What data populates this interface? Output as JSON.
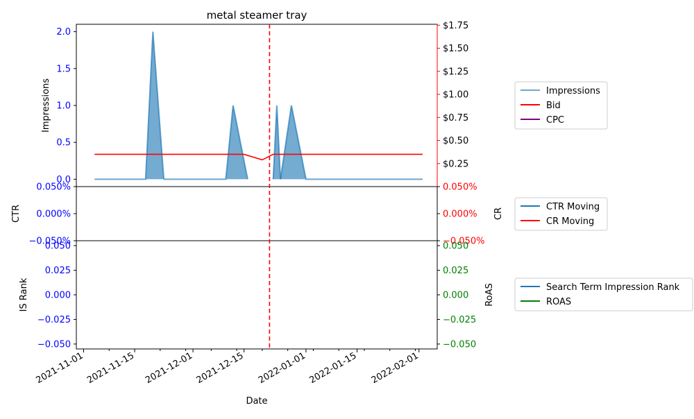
{
  "title": "metal steamer tray",
  "colors": {
    "impressions": "#1f77b4",
    "bid": "#ff0000",
    "cpc": "#800080",
    "ctr": "#1f77b4",
    "cr": "#ff0000",
    "is_rank": "#1f77b4",
    "roas": "#008000",
    "left_tick": "#0000ff",
    "event_line": "#ff0000"
  },
  "chart_data": [
    {
      "type": "area",
      "panel": "top",
      "title": "metal steamer tray",
      "ylabel_left": "Impressions",
      "ylim_left": [
        -0.1,
        2.1
      ],
      "yticks_left": [
        0.0,
        0.5,
        1.0,
        1.5,
        2.0
      ],
      "ytick_labels_left": [
        "0.0",
        "0.5",
        "1.0",
        "1.5",
        "2.0"
      ],
      "ylim_right": [
        0.0,
        1.76
      ],
      "yticks_right": [
        0.25,
        0.5,
        0.75,
        1.0,
        1.25,
        1.5,
        1.75
      ],
      "ytick_labels_right": [
        "$0.25",
        "$0.50",
        "$0.75",
        "$1.00",
        "$1.25",
        "$1.50",
        "$1.75"
      ],
      "legend": [
        "Impressions",
        "Bid",
        "CPC"
      ],
      "legend_position": "outside-right",
      "series": [
        {
          "name": "Impressions",
          "axis": "left",
          "kind": "area",
          "segments": [
            {
              "x": [
                "2021-11-04",
                "2021-11-18",
                "2021-11-20",
                "2021-11-23"
              ],
              "y": [
                0,
                0,
                2,
                0
              ]
            },
            {
              "x": [
                "2021-11-23",
                "2021-12-10",
                "2021-12-12",
                "2021-12-16"
              ],
              "y": [
                0,
                0,
                1,
                0
              ]
            },
            {
              "x": [
                "2021-12-23",
                "2021-12-24",
                "2021-12-25"
              ],
              "y": [
                0,
                1,
                0
              ]
            },
            {
              "x": [
                "2021-12-25",
                "2021-12-28",
                "2022-01-01",
                "2022-02-02"
              ],
              "y": [
                0,
                1,
                0,
                0
              ]
            }
          ]
        },
        {
          "name": "Bid",
          "axis": "right",
          "kind": "line",
          "x": [
            "2021-11-04",
            "2021-12-15",
            "2021-12-20",
            "2021-12-23",
            "2022-02-02"
          ],
          "y": [
            0.35,
            0.35,
            0.29,
            0.35,
            0.35
          ]
        },
        {
          "name": "CPC",
          "axis": "right",
          "kind": "line",
          "x": [],
          "y": []
        }
      ]
    },
    {
      "type": "line",
      "panel": "middle",
      "ylabel_left": "CTR",
      "ylabel_right": "CR",
      "ylim": [
        -0.0005,
        0.0005
      ],
      "ytick_labels": [
        "−0.050%",
        "0.000%",
        "0.050%"
      ],
      "legend": [
        "CTR Moving",
        "CR Moving"
      ],
      "legend_position": "outside-right",
      "series": [
        {
          "name": "CTR Moving",
          "x": [],
          "y": []
        },
        {
          "name": "CR Moving",
          "x": [],
          "y": []
        }
      ]
    },
    {
      "type": "line",
      "panel": "bottom",
      "ylabel_left": "IS Rank",
      "ylabel_right": "RoAS",
      "ylim": [
        -0.055,
        0.055
      ],
      "ytick_labels": [
        "−0.050",
        "−0.025",
        "0.000",
        "0.025",
        "0.050"
      ],
      "legend": [
        "Search Term Impression Rank",
        "ROAS"
      ],
      "legend_position": "outside-right",
      "series": [
        {
          "name": "Search Term Impression Rank",
          "x": [],
          "y": []
        },
        {
          "name": "ROAS",
          "x": [],
          "y": []
        }
      ]
    }
  ],
  "x_axis": {
    "label": "Date",
    "range": [
      "2021-10-30",
      "2022-02-06"
    ],
    "ticks": [
      "2021-11-01",
      "2021-11-15",
      "2021-12-01",
      "2021-12-15",
      "2022-01-01",
      "2022-01-15",
      "2022-02-01"
    ],
    "tick_labels": [
      "2021-11-01",
      "2021-11-15",
      "2021-12-01",
      "2021-12-15",
      "2022-01-01",
      "2022-01-15",
      "2022-02-01"
    ]
  },
  "event_line": {
    "x": "2021-12-22"
  }
}
